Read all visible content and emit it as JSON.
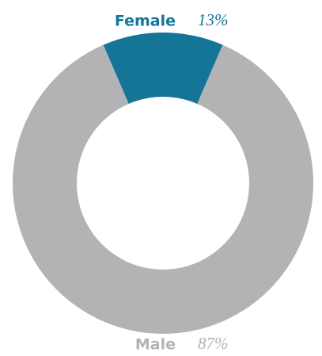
{
  "chart_data": {
    "type": "pie",
    "donut": true,
    "categories": [
      "Female",
      "Male"
    ],
    "values": [
      13,
      87
    ],
    "value_labels": [
      "13%",
      "87%"
    ],
    "colors": [
      "#147597",
      "#b3b3b5"
    ]
  }
}
